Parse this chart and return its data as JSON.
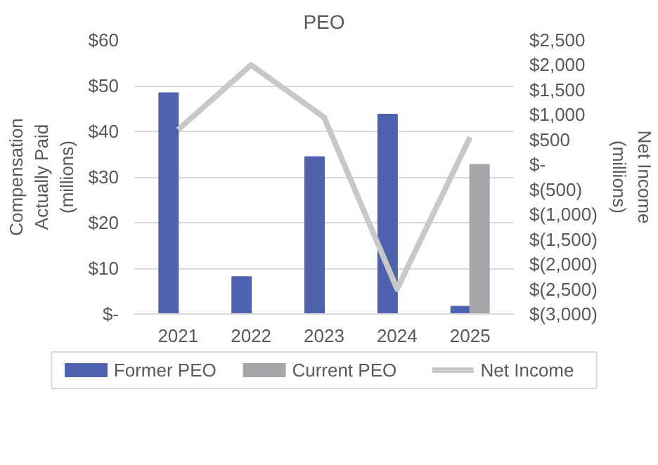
{
  "chart_data": {
    "type": "bar",
    "title": "PEO",
    "categories": [
      "2021",
      "2022",
      "2023",
      "2024",
      "2025"
    ],
    "ylabel": "Compensation Actually Paid (millions)",
    "y2label": "Net Income (millions)",
    "series": [
      {
        "name": "Former PEO",
        "color": "#4f62b0",
        "values": [
          48.4,
          8.1,
          34.4,
          43.7,
          1.6
        ]
      },
      {
        "name": "Current PEO",
        "color": "#a5a7aa",
        "values": [
          null,
          null,
          null,
          null,
          32.7
        ]
      },
      {
        "name": "Net Income",
        "type": "line",
        "axis": "y2",
        "color": "#c8c8c8",
        "values": [
          700,
          2000,
          950,
          -2500,
          550
        ]
      }
    ],
    "ylim": [
      0,
      60
    ],
    "yticks": [
      {
        "value": 0,
        "label": "$-"
      },
      {
        "value": 10,
        "label": "$10"
      },
      {
        "value": 20,
        "label": "$20"
      },
      {
        "value": 30,
        "label": "$30"
      },
      {
        "value": 40,
        "label": "$40"
      },
      {
        "value": 50,
        "label": "$50"
      },
      {
        "value": 60,
        "label": "$60"
      }
    ],
    "y2lim": [
      -3000,
      2500
    ],
    "y2ticks": [
      {
        "value": -3000,
        "label": "$(3,000)"
      },
      {
        "value": -2500,
        "label": "$(2,500)"
      },
      {
        "value": -2000,
        "label": "$(2,000)"
      },
      {
        "value": -1500,
        "label": "$(1,500)"
      },
      {
        "value": -1000,
        "label": "$(1,000)"
      },
      {
        "value": -500,
        "label": "$(500)"
      },
      {
        "value": 0,
        "label": "$-"
      },
      {
        "value": 500,
        "label": "$500"
      },
      {
        "value": 1000,
        "label": "$1,000"
      },
      {
        "value": 1500,
        "label": "$1,500"
      },
      {
        "value": 2000,
        "label": "$2,000"
      },
      {
        "value": 2500,
        "label": "$2,500"
      }
    ],
    "grid": "y",
    "legend": "bottom",
    "marker": "none",
    "line_style": "solid"
  }
}
